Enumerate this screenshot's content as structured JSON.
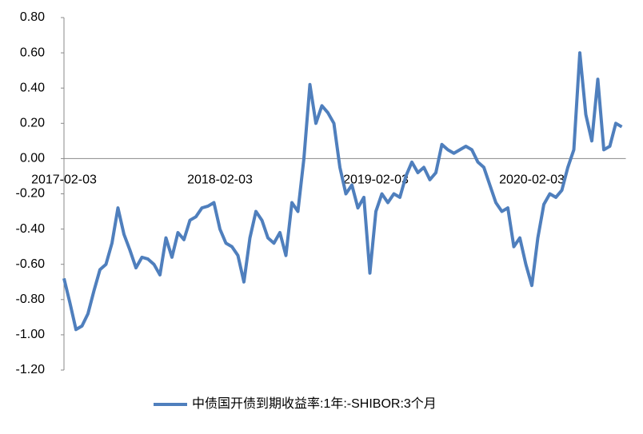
{
  "chart_data": {
    "type": "line",
    "legend_position": "bottom",
    "categories": [
      "2017-02-03",
      null,
      null,
      null,
      null,
      null,
      null,
      null,
      null,
      null,
      null,
      null,
      null,
      null,
      null,
      null,
      null,
      null,
      null,
      null,
      null,
      null,
      null,
      null,
      null,
      null,
      "2018-02-03",
      null,
      null,
      null,
      null,
      null,
      null,
      null,
      null,
      null,
      null,
      null,
      null,
      null,
      null,
      null,
      null,
      null,
      null,
      null,
      null,
      null,
      null,
      null,
      null,
      null,
      "2019-02-03",
      null,
      null,
      null,
      null,
      null,
      null,
      null,
      null,
      null,
      null,
      null,
      null,
      null,
      null,
      null,
      null,
      null,
      null,
      null,
      null,
      null,
      null,
      null,
      null,
      null,
      "2020-02-03",
      null,
      null,
      null,
      null,
      null,
      null,
      null,
      null,
      null,
      null,
      null,
      null,
      null,
      null,
      null
    ],
    "series": [
      {
        "name": "中债国开债到期收益率:1年:-SHIBOR:3个月",
        "color": "#4f7fbd",
        "values": [
          -0.68,
          -0.82,
          -0.97,
          -0.95,
          -0.88,
          -0.75,
          -0.63,
          -0.6,
          -0.48,
          -0.28,
          -0.43,
          -0.52,
          -0.62,
          -0.56,
          -0.57,
          -0.6,
          -0.66,
          -0.45,
          -0.56,
          -0.42,
          -0.46,
          -0.35,
          -0.33,
          -0.28,
          -0.27,
          -0.25,
          -0.4,
          -0.48,
          -0.5,
          -0.55,
          -0.7,
          -0.45,
          -0.3,
          -0.35,
          -0.45,
          -0.48,
          -0.42,
          -0.55,
          -0.25,
          -0.3,
          0.0,
          0.42,
          0.2,
          0.3,
          0.26,
          0.2,
          -0.05,
          -0.2,
          -0.15,
          -0.28,
          -0.22,
          -0.65,
          -0.3,
          -0.2,
          -0.25,
          -0.2,
          -0.22,
          -0.1,
          -0.02,
          -0.08,
          -0.05,
          -0.12,
          -0.08,
          0.08,
          0.05,
          0.03,
          0.05,
          0.07,
          0.05,
          -0.02,
          -0.05,
          -0.15,
          -0.25,
          -0.3,
          -0.28,
          -0.5,
          -0.45,
          -0.6,
          -0.72,
          -0.45,
          -0.26,
          -0.2,
          -0.22,
          -0.18,
          -0.05,
          0.05,
          0.6,
          0.25,
          0.1,
          0.45,
          0.05,
          0.07,
          0.2,
          0.18
        ]
      }
    ],
    "ylim": [
      -1.2,
      0.8
    ],
    "yticks": [
      {
        "value": -1.2,
        "label": "-1.20"
      },
      {
        "value": -1.0,
        "label": "-1.00"
      },
      {
        "value": -0.8,
        "label": "-0.80"
      },
      {
        "value": -0.6,
        "label": "-0.60"
      },
      {
        "value": -0.4,
        "label": "-0.40"
      },
      {
        "value": -0.2,
        "label": "-0.20"
      },
      {
        "value": 0,
        "label": "0.00"
      },
      {
        "value": 0.2,
        "label": "0.20"
      },
      {
        "value": 0.4,
        "label": "0.40"
      },
      {
        "value": 0.6,
        "label": "0.60"
      },
      {
        "value": 0.8,
        "label": "0.80"
      }
    ]
  }
}
